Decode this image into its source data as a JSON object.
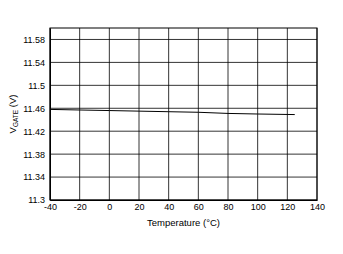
{
  "chart_data": {
    "type": "line",
    "xlabel": "Temperature (°C)",
    "ylabel": "VGATE (V)",
    "x": [
      -40,
      -20,
      0,
      20,
      40,
      60,
      80,
      100,
      125
    ],
    "values": [
      11.458,
      11.457,
      11.456,
      11.455,
      11.454,
      11.453,
      11.451,
      11.45,
      11.449
    ],
    "color": "#000000",
    "xlim": [
      -40,
      140
    ],
    "xticks": [
      -40,
      -20,
      0,
      20,
      40,
      60,
      80,
      100,
      120,
      140
    ],
    "ylim": [
      11.3,
      11.6
    ],
    "yticks": [
      11.3,
      11.34,
      11.38,
      11.42,
      11.46,
      11.5,
      11.54,
      11.58
    ],
    "grid": true
  }
}
